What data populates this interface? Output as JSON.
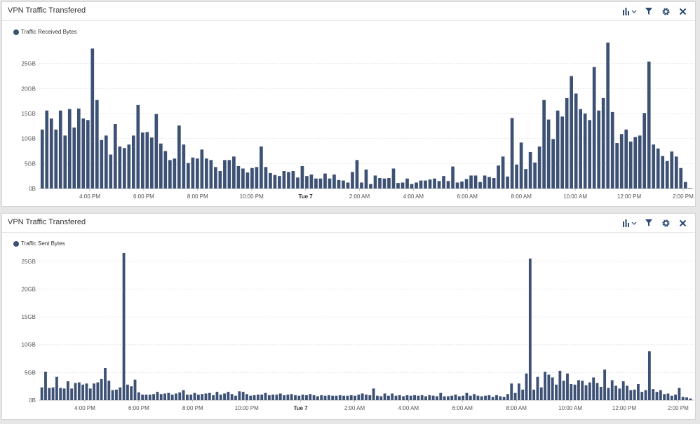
{
  "colors": {
    "bar": "#3d5175",
    "grid": "#e6e6e6",
    "axis": "#bbbbbb"
  },
  "panels": [
    {
      "title": "VPN Traffic Transfered",
      "toolbar": [
        "bar-chart-icon",
        "chevron-down-icon",
        "filter-icon",
        "gear-icon",
        "close-icon"
      ],
      "legend": "Traffic Received Bytes"
    },
    {
      "title": "VPN Traffic Transfered",
      "toolbar": [
        "bar-chart-icon",
        "chevron-down-icon",
        "filter-icon",
        "gear-icon",
        "close-icon"
      ],
      "legend": "Traffic Sent Bytes"
    }
  ],
  "chart_data": [
    {
      "type": "bar",
      "title": "VPN Traffic Transfered",
      "series": [
        {
          "name": "Traffic Received Bytes",
          "values": [
            11.8,
            15.6,
            14,
            11.8,
            15.6,
            10.6,
            15.9,
            12.2,
            16,
            14,
            13.7,
            28,
            17.7,
            9.7,
            10.6,
            6.8,
            12.9,
            8.4,
            8.1,
            8.8,
            10.6,
            16.7,
            11.2,
            11.3,
            10.2,
            14.9,
            9,
            7.5,
            5.7,
            6,
            12.6,
            8.8,
            5.1,
            6.2,
            6,
            7.8,
            6,
            5.7,
            4.3,
            3.5,
            5.7,
            5.7,
            6.4,
            4.5,
            4,
            3.2,
            4.1,
            4.3,
            8.4,
            4.3,
            3.1,
            2.7,
            2.5,
            3.5,
            3.3,
            3.5,
            2.2,
            4.5,
            2.5,
            2.8,
            2,
            2,
            3,
            2,
            2.8,
            1.7,
            1.6,
            1.2,
            3.3,
            5.7,
            1.2,
            3.8,
            0.9,
            2.6,
            2.1,
            2,
            2.1,
            4,
            1.1,
            1.2,
            2,
            0.9,
            1.2,
            1.6,
            1.6,
            1.8,
            2,
            1.5,
            2.5,
            1.5,
            4.4,
            1.2,
            1.4,
            1.9,
            2.6,
            2.6,
            1.3,
            2.6,
            2.3,
            2.1,
            4.6,
            6.4,
            2.4,
            14.1,
            4.8,
            9.2,
            3.9,
            7.3,
            5.2,
            8.4,
            17.7,
            13.8,
            9.9,
            15.6,
            14.4,
            18.1,
            22.5,
            19,
            15.9,
            15,
            13.7,
            24.3,
            15.6,
            18.1,
            29.2,
            15.3,
            9.1,
            10.9,
            11.8,
            9.4,
            10.3,
            10.6,
            15.1,
            25.4,
            8.8,
            8,
            6.5,
            5.5,
            7.4,
            6.4,
            4.1,
            1.3,
            0.1
          ]
        }
      ],
      "x_ticks": [
        "4:00 PM",
        "6:00 PM",
        "8:00 PM",
        "10:00 PM",
        "Tue 7",
        "2:00 AM",
        "4:00 AM",
        "6:00 AM",
        "8:00 AM",
        "10:00 AM",
        "12:00 PM",
        "2:00 PM"
      ],
      "y_ticks": [
        "0B",
        "5GB",
        "10GB",
        "15GB",
        "20GB",
        "25GB"
      ],
      "ylim": [
        0,
        30
      ],
      "grid": true,
      "legend_position": "top-left"
    },
    {
      "type": "bar",
      "title": "VPN Traffic Transfered",
      "series": [
        {
          "name": "Traffic Sent Bytes",
          "values": [
            2.3,
            5.1,
            2.2,
            2.3,
            4.2,
            2.2,
            2.1,
            3.4,
            2.1,
            3.1,
            3.2,
            2.8,
            3,
            2.1,
            3,
            3.2,
            3.8,
            5.8,
            3.5,
            1.8,
            1.9,
            2.3,
            26.5,
            2.8,
            2.5,
            3.7,
            1.4,
            1,
            1,
            1,
            1.1,
            1.5,
            1.1,
            1.2,
            1.3,
            1,
            1.2,
            1.4,
            1.8,
            1,
            1,
            1.3,
            1,
            1.1,
            1.2,
            1.3,
            0.9,
            1.5,
            1,
            1.2,
            1.5,
            1.1,
            0.8,
            1.6,
            1.5,
            1.1,
            0.8,
            0.9,
            1,
            1,
            1.3,
            0.9,
            1,
            1,
            1.2,
            0.9,
            1,
            1.1,
            0.9,
            0.8,
            1,
            0.9,
            1.1,
            0.9,
            0.7,
            0.9,
            0.8,
            0.9,
            0.8,
            0.8,
            0.9,
            0.8,
            0.8,
            0.9,
            0.8,
            1,
            1.2,
            1,
            0.9,
            2.1,
            0.8,
            0.7,
            1.2,
            0.8,
            1.2,
            0.8,
            0.9,
            0.7,
            0.9,
            0.8,
            0.9,
            0.8,
            0.9,
            0.7,
            0.9,
            0.8,
            0.7,
            1.3,
            0.7,
            0.7,
            0.8,
            1,
            0.7,
            0.8,
            1.3,
            0.8,
            1.1,
            0.8,
            0.7,
            0.8,
            0.9,
            0.6,
            0.9,
            0.7,
            0.6,
            1.1,
            3,
            1.3,
            3,
            1.9,
            4.8,
            25.5,
            1.9,
            4.2,
            2.3,
            5.1,
            4.6,
            4.1,
            2.8,
            5.3,
            3.5,
            4.8,
            2.9,
            2.8,
            3.6,
            3.5,
            2.7,
            3.2,
            4.1,
            3.1,
            2.4,
            5.5,
            2.2,
            3.6,
            2.6,
            2.1,
            3.4,
            2.6,
            1.8,
            1.9,
            2.9,
            1.5,
            1.8,
            8.8,
            2,
            1.5,
            1.8,
            1.1,
            1.2,
            0.8,
            1,
            2.2,
            0.6,
            0.5,
            0.3
          ]
        }
      ],
      "x_ticks": [
        "4:00 PM",
        "6:00 PM",
        "8:00 PM",
        "10:00 PM",
        "Tue 7",
        "2:00 AM",
        "4:00 AM",
        "6:00 AM",
        "8:00 AM",
        "10:00 AM",
        "12:00 PM",
        "2:00 PM"
      ],
      "y_ticks": [
        "0B",
        "5GB",
        "10GB",
        "15GB",
        "20GB",
        "25GB"
      ],
      "ylim": [
        0,
        27
      ],
      "grid": true,
      "legend_position": "top-left"
    }
  ]
}
